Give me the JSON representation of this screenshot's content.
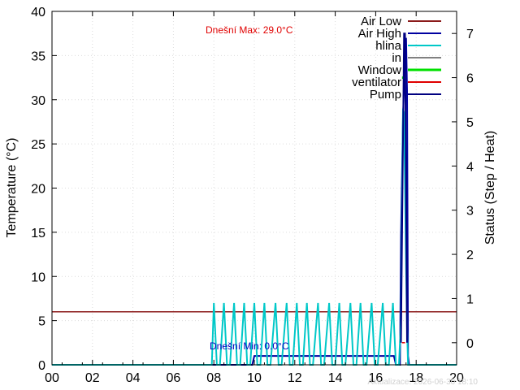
{
  "chart_data": {
    "type": "line",
    "ylabel": "Temperature (°C)",
    "y2label": "Status (Step / Heat)",
    "xlim": [
      0,
      20
    ],
    "ylim": [
      0,
      40
    ],
    "y2lim": [
      -0.5,
      7.5
    ],
    "xticks": [
      "00",
      "02",
      "04",
      "06",
      "08",
      "10",
      "12",
      "14",
      "16",
      "18",
      "20"
    ],
    "yticks": [
      "0",
      "5",
      "10",
      "15",
      "20",
      "25",
      "30",
      "35",
      "40"
    ],
    "y2ticks": [
      "0",
      "1",
      "2",
      "3",
      "4",
      "5",
      "6",
      "7"
    ],
    "grid": true,
    "legend_position": "top-right",
    "annotations": {
      "max_label": "Dnešní Max: 29.0°C",
      "min_label": "Dnešní Min: 0.0°C",
      "footer": "Aktualizace: 2026-06-30 18:10"
    },
    "colors": {
      "air_low": "#8b1a1a",
      "air_high": "#0000a0",
      "hlina": "#00c8c8",
      "in": "#808080",
      "window": "#00e000",
      "ventilator": "#e00000",
      "pump": "#000080",
      "max_label": "#e00000",
      "min_label": "#0000c0"
    },
    "series": [
      {
        "name": "Air Low",
        "axis": "left",
        "x": [
          0,
          20
        ],
        "values": [
          6,
          6
        ]
      },
      {
        "name": "Air High",
        "axis": "left",
        "x": [
          0,
          9.9,
          10.0,
          16.9,
          17.0,
          17.2,
          17.25,
          17.35,
          17.4,
          17.5,
          17.55,
          17.6,
          17.65,
          17.7,
          20
        ],
        "values": [
          0,
          0,
          1,
          1,
          0,
          0,
          14.5,
          28,
          31.5,
          37,
          31,
          1,
          0,
          0,
          0
        ]
      },
      {
        "name": "hlina",
        "axis": "left",
        "x": [
          0,
          7.9,
          8.0,
          8.15,
          8.3,
          8.5,
          8.65,
          8.8,
          9.0,
          9.15,
          9.3,
          9.5,
          9.65,
          9.8,
          10.0,
          10.15,
          10.3,
          10.5,
          10.65,
          10.8,
          11.05,
          11.2,
          11.35,
          11.6,
          11.75,
          11.9,
          12.1,
          12.25,
          12.4,
          12.6,
          12.75,
          12.9,
          13.15,
          13.3,
          13.45,
          13.7,
          13.85,
          14.0,
          14.2,
          14.35,
          14.5,
          14.75,
          14.9,
          15.05,
          15.25,
          15.4,
          15.55,
          15.8,
          15.95,
          16.1,
          16.35,
          16.5,
          16.65,
          16.85,
          17.0,
          17.15,
          17.25,
          17.3,
          17.35,
          17.4,
          17.45,
          17.5,
          17.55,
          17.6,
          17.7,
          20
        ],
        "values": [
          0,
          0,
          7,
          0,
          0,
          7,
          0,
          0,
          7,
          0,
          0,
          7,
          0,
          0,
          7,
          0,
          0,
          7,
          0,
          0,
          7,
          0,
          0,
          7,
          0,
          0,
          7,
          0,
          0,
          7,
          0,
          0,
          7,
          0,
          0,
          7,
          0,
          0,
          7,
          0,
          0,
          7,
          0,
          0,
          7,
          0,
          0,
          7,
          0,
          0,
          7,
          0,
          0,
          7,
          0,
          0,
          5,
          18,
          29,
          28.5,
          20,
          11,
          4,
          0,
          0,
          0
        ]
      },
      {
        "name": "in",
        "axis": "left",
        "x": [],
        "values": []
      },
      {
        "name": "Window",
        "axis": "right",
        "x": [
          17.3,
          17.45
        ],
        "values": [
          6,
          6
        ]
      },
      {
        "name": "ventilator",
        "axis": "right",
        "x": [
          17.3,
          17.45
        ],
        "values": [
          0,
          0
        ]
      },
      {
        "name": "Pump",
        "axis": "right",
        "x": [
          17.25,
          17.4,
          17.45,
          17.55
        ],
        "values": [
          0,
          7,
          7,
          0
        ]
      }
    ]
  }
}
